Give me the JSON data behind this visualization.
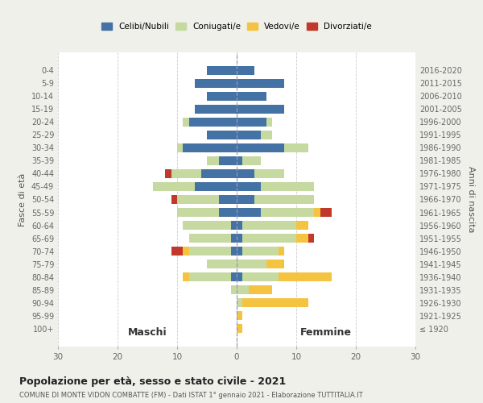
{
  "age_groups": [
    "0-4",
    "5-9",
    "10-14",
    "15-19",
    "20-24",
    "25-29",
    "30-34",
    "35-39",
    "40-44",
    "45-49",
    "50-54",
    "55-59",
    "60-64",
    "65-69",
    "70-74",
    "75-79",
    "80-84",
    "85-89",
    "90-94",
    "95-99",
    "100+"
  ],
  "birth_years": [
    "2016-2020",
    "2011-2015",
    "2006-2010",
    "2001-2005",
    "1996-2000",
    "1991-1995",
    "1986-1990",
    "1981-1985",
    "1976-1980",
    "1971-1975",
    "1966-1970",
    "1961-1965",
    "1956-1960",
    "1951-1955",
    "1946-1950",
    "1941-1945",
    "1936-1940",
    "1931-1935",
    "1926-1930",
    "1921-1925",
    "≤ 1920"
  ],
  "maschi": {
    "celibi": [
      5,
      7,
      5,
      7,
      8,
      5,
      9,
      3,
      6,
      7,
      3,
      3,
      1,
      1,
      1,
      0,
      1,
      0,
      0,
      0,
      0
    ],
    "coniugati": [
      0,
      0,
      0,
      0,
      1,
      0,
      1,
      2,
      5,
      7,
      7,
      7,
      8,
      7,
      7,
      5,
      7,
      1,
      0,
      0,
      0
    ],
    "vedovi": [
      0,
      0,
      0,
      0,
      0,
      0,
      0,
      0,
      0,
      0,
      0,
      0,
      0,
      0,
      1,
      0,
      1,
      0,
      0,
      0,
      0
    ],
    "divorziati": [
      0,
      0,
      0,
      0,
      0,
      0,
      0,
      0,
      1,
      0,
      1,
      0,
      0,
      0,
      2,
      0,
      0,
      0,
      0,
      0,
      0
    ]
  },
  "femmine": {
    "celibi": [
      3,
      8,
      5,
      8,
      5,
      4,
      8,
      1,
      3,
      4,
      3,
      4,
      1,
      1,
      1,
      0,
      1,
      0,
      0,
      0,
      0
    ],
    "coniugati": [
      0,
      0,
      0,
      0,
      1,
      2,
      4,
      3,
      5,
      9,
      10,
      9,
      9,
      9,
      6,
      5,
      6,
      2,
      1,
      0,
      0
    ],
    "vedovi": [
      0,
      0,
      0,
      0,
      0,
      0,
      0,
      0,
      0,
      0,
      0,
      1,
      2,
      2,
      1,
      3,
      9,
      4,
      11,
      1,
      1
    ],
    "divorziati": [
      0,
      0,
      0,
      0,
      0,
      0,
      0,
      0,
      0,
      0,
      0,
      2,
      0,
      1,
      0,
      0,
      0,
      0,
      0,
      0,
      0
    ]
  },
  "colors": {
    "celibi": "#4472a4",
    "coniugati": "#c5d9a0",
    "vedovi": "#f5c342",
    "divorziati": "#c0392b"
  },
  "xlim": 30,
  "title": "Popolazione per età, sesso e stato civile - 2021",
  "subtitle": "COMUNE DI MONTE VIDON COMBATTE (FM) - Dati ISTAT 1° gennaio 2021 - Elaborazione TUTTITALIA.IT",
  "ylabel_left": "Fasce di età",
  "ylabel_right": "Anni di nascita",
  "label_maschi": "Maschi",
  "label_femmine": "Femmine",
  "legend_labels": [
    "Celibi/Nubili",
    "Coniugati/e",
    "Vedovi/e",
    "Divorziati/e"
  ],
  "bg_color": "#f0f0eb",
  "plot_bg": "#ffffff"
}
